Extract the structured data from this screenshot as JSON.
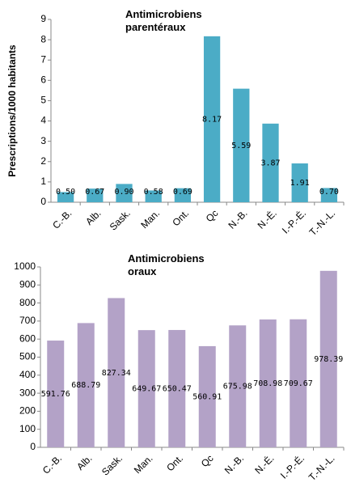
{
  "chart_data": [
    {
      "type": "bar",
      "title": "Antimicrobiens parentéraux",
      "y_label": "Prescriptions/1000 habitants",
      "categories": [
        "C.-B.",
        "Alb.",
        "Sask.",
        "Man.",
        "Ont.",
        "Qc",
        "N.-B.",
        "N.-É.",
        "I.-P.-É.",
        "T.-N.-L."
      ],
      "values": [
        0.5,
        0.67,
        0.9,
        0.58,
        0.69,
        8.17,
        5.59,
        3.87,
        1.91,
        0.7
      ],
      "value_labels": [
        "0.50",
        "0.67",
        "0.90",
        "0.58",
        "0.69",
        "8.17",
        "5.59",
        "3.87",
        "1.91",
        "0.70"
      ],
      "color": "#4bacc6",
      "ylim": [
        0,
        9
      ],
      "yticks": [
        0,
        1,
        2,
        3,
        4,
        5,
        6,
        7,
        8,
        9
      ]
    },
    {
      "type": "bar",
      "title": "Antimicrobiens oraux",
      "categories": [
        "C.-B.",
        "Alb.",
        "Sask.",
        "Man.",
        "Ont.",
        "Qc",
        "N.-B.",
        "N.-É.",
        "I.-P.-É.",
        "T.-N.-L."
      ],
      "values": [
        591.76,
        688.79,
        827.34,
        649.67,
        650.47,
        560.91,
        675.98,
        708.98,
        709.67,
        978.39
      ],
      "color": "#b3a2c7",
      "ylim": [
        0,
        1000
      ],
      "yticks": [
        0,
        100,
        200,
        300,
        400,
        500,
        600,
        700,
        800,
        900,
        1000
      ]
    }
  ]
}
